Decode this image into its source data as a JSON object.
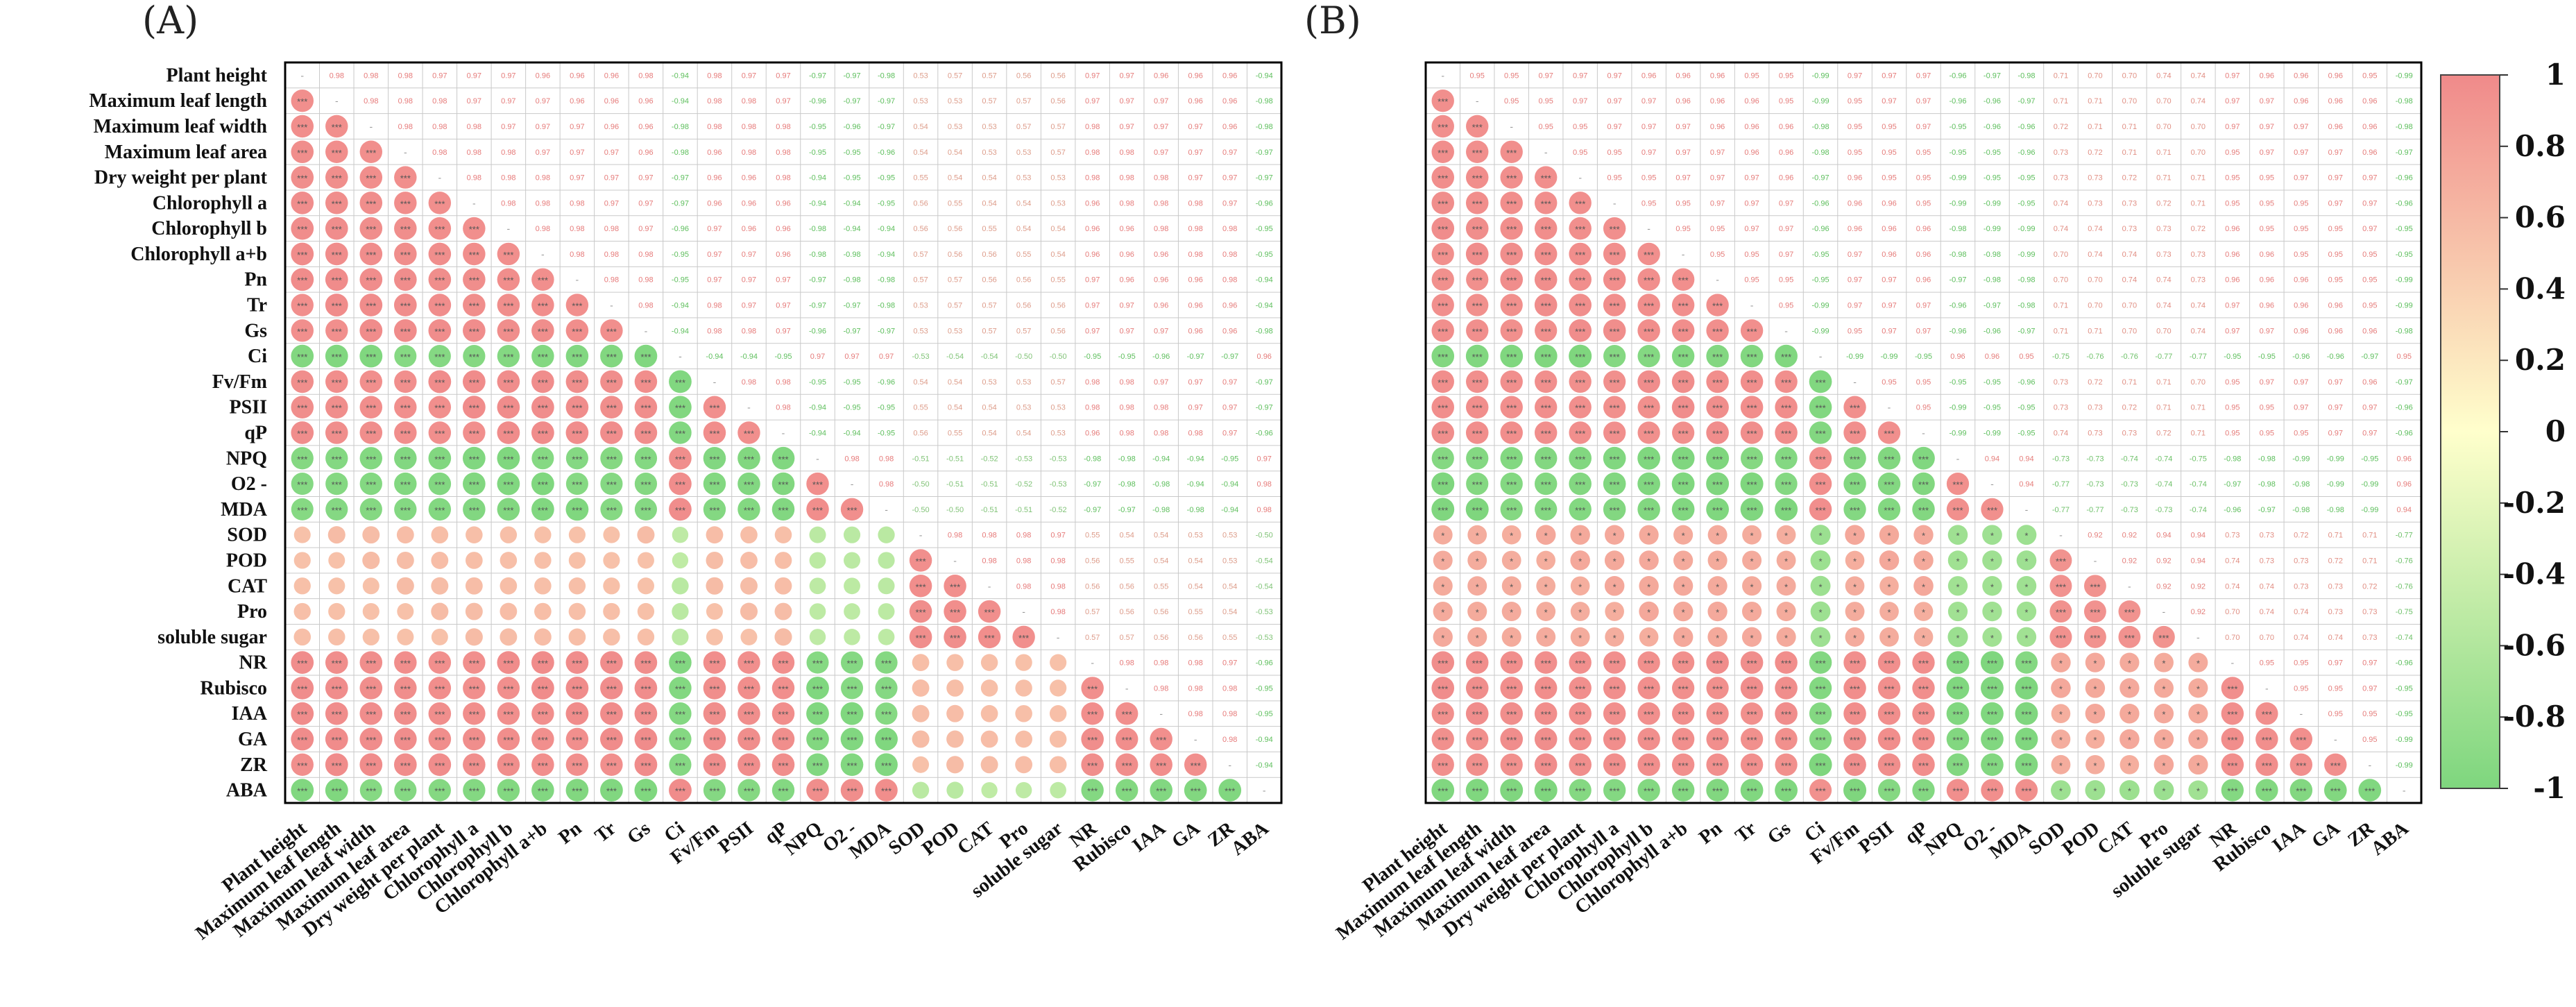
{
  "chart_data": [
    {
      "type": "correlation-matrix",
      "title": "(A)",
      "variables": [
        "Plant height",
        "Maximum  leaf length",
        "Maximum leaf width",
        "Maximum leaf area",
        "Dry weight per plant",
        "Chlorophyll a",
        "Chlorophyll b",
        "Chlorophyll a+b",
        "Pn",
        "Tr",
        "Gs",
        "Ci",
        "Fv/Fm",
        "PSII",
        "qP",
        "NPQ",
        "O2 -",
        "MDA",
        "SOD",
        "POD",
        "CAT",
        "Pro",
        "soluble sugar",
        "NR",
        "Rubisco",
        "IAA",
        "GA",
        "ZR",
        "ABA"
      ],
      "groups": {
        "A": [
          0,
          1,
          2,
          3,
          4,
          5,
          6,
          7,
          8,
          9,
          10,
          12,
          13,
          14,
          23,
          24,
          25,
          26,
          27
        ],
        "B": [
          11,
          15,
          16,
          17,
          28
        ],
        "C": [
          18,
          19,
          20,
          21,
          22
        ]
      },
      "group_corr": {
        "AA": 0.97,
        "BB": 0.97,
        "CC": 0.97,
        "AB": -0.96,
        "AC": 0.55,
        "BC": -0.52
      },
      "sig_same": "***",
      "sig_cross_AB": "***",
      "sig_cross_C": "",
      "upper_values": "correlation coefficients",
      "lower_values": "circles sized by |r| with significance stars"
    },
    {
      "type": "correlation-matrix",
      "title": "(B)",
      "variables": [
        "Plant height",
        "Maximum  leaf length",
        "Maximum leaf width",
        "Maximum leaf area",
        "Dry weight per plant",
        "Chlorophyll a",
        "Chlorophyll b",
        "Chlorophyll a+b",
        "Pn",
        "Tr",
        "Gs",
        "Ci",
        "Fv/Fm",
        "PSII",
        "qP",
        "NPQ",
        "O2 -",
        "MDA",
        "SOD",
        "POD",
        "CAT",
        "Pro",
        "soluble sugar",
        "NR",
        "Rubisco",
        "IAA",
        "GA",
        "ZR",
        "ABA"
      ],
      "groups": {
        "A": [
          0,
          1,
          2,
          3,
          4,
          5,
          6,
          7,
          8,
          9,
          10,
          12,
          13,
          14,
          23,
          24,
          25,
          26,
          27
        ],
        "B": [
          11,
          15,
          16,
          17,
          28
        ],
        "C": [
          18,
          19,
          20,
          21,
          22
        ]
      },
      "group_corr": {
        "AA": 0.96,
        "BB": 0.95,
        "CC": 0.93,
        "AB": -0.97,
        "AC": 0.72,
        "BC": -0.75
      },
      "sig_same": "***",
      "sig_cross_AB": "***",
      "sig_cross_C": "*",
      "upper_values": "correlation coefficients",
      "lower_values": "circles sized by |r| with significance stars"
    }
  ],
  "colorbar": {
    "min": -1,
    "max": 1,
    "ticks": [
      "1",
      "0.8",
      "0.6",
      "0.4",
      "0.2",
      "0",
      "-0.2",
      "-0.4",
      "-0.6",
      "-0.8",
      "-1"
    ],
    "colors": {
      "positive": "#f08a8a",
      "neutral": "#ffffcc",
      "negative": "#7ed67e"
    }
  }
}
